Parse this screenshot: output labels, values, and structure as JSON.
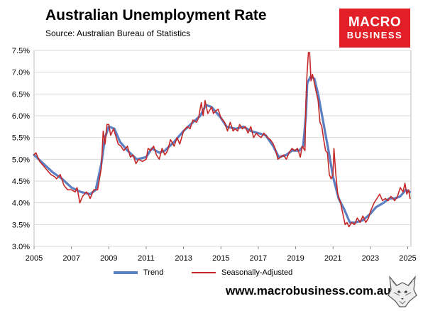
{
  "header": {
    "title": "Australian Unemployment Rate",
    "subtitle": "Source: Australian Bureau of Statistics"
  },
  "logo": {
    "line1": "MACRO",
    "line2": "BUSINESS"
  },
  "footer": {
    "url": "www.macrobusiness.com.au",
    "mascot_icon": "wolf-head-icon"
  },
  "colors": {
    "trend": "#5b7fc1",
    "seasonally_adjusted": "#c62828",
    "brand": "#e21f26",
    "grid": "#d9d9d9"
  },
  "chart_data": {
    "type": "line",
    "title": "Australian Unemployment Rate",
    "xlabel": "",
    "ylabel": "",
    "xlim": [
      2005,
      2025.17
    ],
    "ylim": [
      3.0,
      7.5
    ],
    "x_ticks": [
      "2005",
      "2007",
      "2009",
      "2011",
      "2013",
      "2015",
      "2017",
      "2019",
      "2021",
      "2023",
      "2025"
    ],
    "y_ticks": [
      "3.0%",
      "3.5%",
      "4.0%",
      "4.5%",
      "5.0%",
      "5.5%",
      "6.0%",
      "6.5%",
      "7.0%",
      "7.5%"
    ],
    "grid": true,
    "legend": "bottom",
    "series": [
      {
        "name": "Trend",
        "points": [
          [
            2005.0,
            5.1
          ],
          [
            2005.5,
            4.9
          ],
          [
            2006.0,
            4.7
          ],
          [
            2006.5,
            4.55
          ],
          [
            2007.0,
            4.35
          ],
          [
            2007.5,
            4.25
          ],
          [
            2008.0,
            4.2
          ],
          [
            2008.3,
            4.3
          ],
          [
            2008.6,
            4.9
          ],
          [
            2008.8,
            5.5
          ],
          [
            2009.0,
            5.75
          ],
          [
            2009.3,
            5.7
          ],
          [
            2009.6,
            5.4
          ],
          [
            2010.0,
            5.2
          ],
          [
            2010.5,
            5.0
          ],
          [
            2011.0,
            5.05
          ],
          [
            2011.3,
            5.25
          ],
          [
            2011.7,
            5.15
          ],
          [
            2012.0,
            5.2
          ],
          [
            2012.5,
            5.4
          ],
          [
            2013.0,
            5.65
          ],
          [
            2013.5,
            5.85
          ],
          [
            2013.9,
            6.0
          ],
          [
            2014.2,
            6.25
          ],
          [
            2014.5,
            6.2
          ],
          [
            2015.0,
            5.95
          ],
          [
            2015.3,
            5.75
          ],
          [
            2015.8,
            5.7
          ],
          [
            2016.2,
            5.75
          ],
          [
            2016.6,
            5.65
          ],
          [
            2017.0,
            5.6
          ],
          [
            2017.4,
            5.55
          ],
          [
            2017.8,
            5.3
          ],
          [
            2018.1,
            5.05
          ],
          [
            2018.5,
            5.1
          ],
          [
            2018.8,
            5.2
          ],
          [
            2019.2,
            5.2
          ],
          [
            2019.4,
            5.3
          ],
          [
            2019.55,
            6.0
          ],
          [
            2019.62,
            6.75
          ],
          [
            2019.8,
            6.9
          ],
          [
            2020.0,
            6.85
          ],
          [
            2020.2,
            6.5
          ],
          [
            2020.5,
            5.8
          ],
          [
            2020.8,
            5.1
          ],
          [
            2021.0,
            4.6
          ],
          [
            2021.3,
            4.1
          ],
          [
            2021.6,
            3.85
          ],
          [
            2021.9,
            3.55
          ],
          [
            2022.2,
            3.55
          ],
          [
            2022.6,
            3.6
          ],
          [
            2023.0,
            3.75
          ],
          [
            2023.3,
            3.9
          ],
          [
            2023.7,
            4.0
          ],
          [
            2024.0,
            4.1
          ],
          [
            2024.3,
            4.1
          ],
          [
            2024.6,
            4.15
          ],
          [
            2024.9,
            4.3
          ],
          [
            2025.1,
            4.25
          ]
        ]
      },
      {
        "name": "Seasonally-Adjusted",
        "points": [
          [
            2005.0,
            5.1
          ],
          [
            2005.1,
            5.15
          ],
          [
            2005.3,
            4.95
          ],
          [
            2005.5,
            4.85
          ],
          [
            2005.7,
            4.75
          ],
          [
            2005.9,
            4.65
          ],
          [
            2006.1,
            4.6
          ],
          [
            2006.2,
            4.55
          ],
          [
            2006.4,
            4.65
          ],
          [
            2006.6,
            4.4
          ],
          [
            2006.8,
            4.3
          ],
          [
            2007.0,
            4.3
          ],
          [
            2007.2,
            4.25
          ],
          [
            2007.3,
            4.35
          ],
          [
            2007.45,
            4.0
          ],
          [
            2007.6,
            4.15
          ],
          [
            2007.8,
            4.25
          ],
          [
            2007.9,
            4.2
          ],
          [
            2008.0,
            4.1
          ],
          [
            2008.2,
            4.3
          ],
          [
            2008.4,
            4.3
          ],
          [
            2008.6,
            4.8
          ],
          [
            2008.7,
            5.65
          ],
          [
            2008.8,
            5.35
          ],
          [
            2008.9,
            5.8
          ],
          [
            2009.0,
            5.8
          ],
          [
            2009.1,
            5.55
          ],
          [
            2009.25,
            5.7
          ],
          [
            2009.4,
            5.5
          ],
          [
            2009.5,
            5.35
          ],
          [
            2009.65,
            5.3
          ],
          [
            2009.8,
            5.2
          ],
          [
            2010.0,
            5.3
          ],
          [
            2010.15,
            5.05
          ],
          [
            2010.3,
            5.1
          ],
          [
            2010.45,
            4.9
          ],
          [
            2010.6,
            5.0
          ],
          [
            2010.8,
            4.95
          ],
          [
            2011.0,
            5.0
          ],
          [
            2011.1,
            5.25
          ],
          [
            2011.25,
            5.2
          ],
          [
            2011.4,
            5.3
          ],
          [
            2011.55,
            5.1
          ],
          [
            2011.7,
            5.0
          ],
          [
            2011.85,
            5.25
          ],
          [
            2012.0,
            5.1
          ],
          [
            2012.15,
            5.2
          ],
          [
            2012.3,
            5.45
          ],
          [
            2012.5,
            5.3
          ],
          [
            2012.65,
            5.5
          ],
          [
            2012.8,
            5.35
          ],
          [
            2013.0,
            5.65
          ],
          [
            2013.2,
            5.75
          ],
          [
            2013.35,
            5.7
          ],
          [
            2013.5,
            5.9
          ],
          [
            2013.7,
            5.85
          ],
          [
            2013.8,
            5.95
          ],
          [
            2013.95,
            6.3
          ],
          [
            2014.05,
            6.0
          ],
          [
            2014.15,
            6.35
          ],
          [
            2014.3,
            6.05
          ],
          [
            2014.5,
            6.2
          ],
          [
            2014.6,
            6.05
          ],
          [
            2014.7,
            6.1
          ],
          [
            2014.85,
            6.15
          ],
          [
            2015.0,
            5.95
          ],
          [
            2015.2,
            5.85
          ],
          [
            2015.35,
            5.65
          ],
          [
            2015.5,
            5.85
          ],
          [
            2015.65,
            5.65
          ],
          [
            2015.75,
            5.7
          ],
          [
            2015.9,
            5.65
          ],
          [
            2016.0,
            5.8
          ],
          [
            2016.15,
            5.7
          ],
          [
            2016.3,
            5.75
          ],
          [
            2016.45,
            5.6
          ],
          [
            2016.6,
            5.75
          ],
          [
            2016.75,
            5.5
          ],
          [
            2016.9,
            5.6
          ],
          [
            2017.0,
            5.55
          ],
          [
            2017.15,
            5.5
          ],
          [
            2017.3,
            5.6
          ],
          [
            2017.5,
            5.5
          ],
          [
            2017.65,
            5.45
          ],
          [
            2017.8,
            5.35
          ],
          [
            2017.9,
            5.25
          ],
          [
            2018.05,
            5.0
          ],
          [
            2018.2,
            5.05
          ],
          [
            2018.35,
            5.1
          ],
          [
            2018.5,
            5.0
          ],
          [
            2018.65,
            5.15
          ],
          [
            2018.8,
            5.25
          ],
          [
            2018.95,
            5.2
          ],
          [
            2019.1,
            5.25
          ],
          [
            2019.25,
            5.05
          ],
          [
            2019.35,
            5.3
          ],
          [
            2019.5,
            5.2
          ],
          [
            2019.55,
            6.3
          ],
          [
            2019.6,
            6.9
          ],
          [
            2019.68,
            7.45
          ],
          [
            2019.75,
            7.45
          ],
          [
            2019.82,
            6.8
          ],
          [
            2019.9,
            6.95
          ],
          [
            2020.0,
            6.75
          ],
          [
            2020.1,
            6.55
          ],
          [
            2020.2,
            6.35
          ],
          [
            2020.3,
            5.85
          ],
          [
            2020.4,
            5.75
          ],
          [
            2020.5,
            5.45
          ],
          [
            2020.6,
            5.2
          ],
          [
            2020.7,
            5.15
          ],
          [
            2020.8,
            4.65
          ],
          [
            2020.9,
            4.55
          ],
          [
            2021.0,
            4.65
          ],
          [
            2021.05,
            5.25
          ],
          [
            2021.15,
            4.65
          ],
          [
            2021.25,
            4.2
          ],
          [
            2021.4,
            4.0
          ],
          [
            2021.55,
            3.7
          ],
          [
            2021.65,
            3.5
          ],
          [
            2021.75,
            3.55
          ],
          [
            2021.85,
            3.45
          ],
          [
            2022.0,
            3.55
          ],
          [
            2022.15,
            3.5
          ],
          [
            2022.3,
            3.65
          ],
          [
            2022.45,
            3.55
          ],
          [
            2022.6,
            3.7
          ],
          [
            2022.75,
            3.55
          ],
          [
            2022.9,
            3.65
          ],
          [
            2023.0,
            3.8
          ],
          [
            2023.1,
            3.9
          ],
          [
            2023.2,
            4.0
          ],
          [
            2023.35,
            4.1
          ],
          [
            2023.5,
            4.2
          ],
          [
            2023.65,
            4.05
          ],
          [
            2023.8,
            4.1
          ],
          [
            2023.95,
            4.05
          ],
          [
            2024.1,
            4.15
          ],
          [
            2024.3,
            4.05
          ],
          [
            2024.45,
            4.15
          ],
          [
            2024.6,
            4.35
          ],
          [
            2024.75,
            4.25
          ],
          [
            2024.85,
            4.45
          ],
          [
            2024.95,
            4.2
          ],
          [
            2025.05,
            4.3
          ],
          [
            2025.12,
            4.1
          ]
        ]
      }
    ]
  }
}
